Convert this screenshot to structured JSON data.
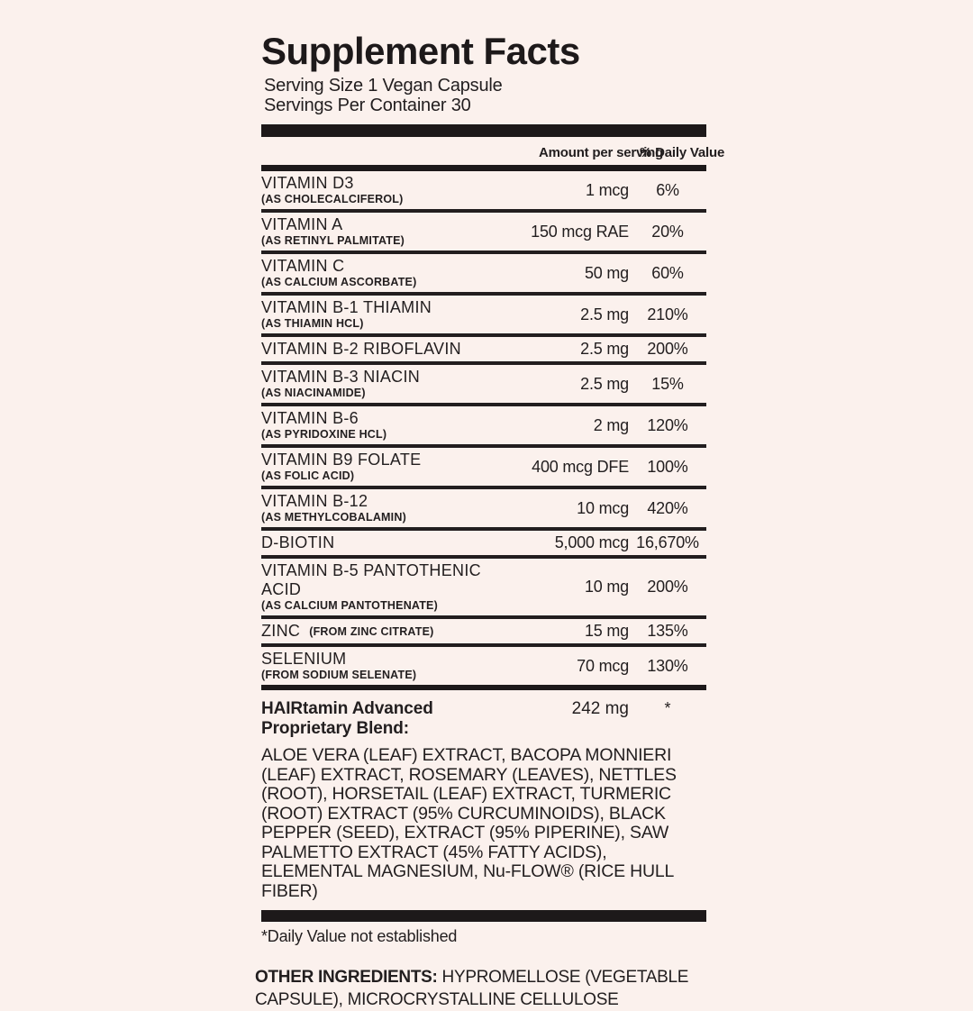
{
  "title": "Supplement Facts",
  "serving": {
    "size": "Serving Size 1 Vegan Capsule",
    "per_container": "Servings Per Container 30"
  },
  "header": {
    "amount": "Amount per serving",
    "daily_value": "% Daily Value"
  },
  "rows": [
    {
      "name": "VITAMIN D3",
      "detail": "(AS CHOLECALCIFEROL)",
      "amount": "1 mcg",
      "dv": "6%"
    },
    {
      "name": "VITAMIN A",
      "detail": "(AS RETINYL PALMITATE)",
      "amount": "150 mcg RAE",
      "dv": "20%"
    },
    {
      "name": "VITAMIN C",
      "detail": "(AS CALCIUM ASCORBATE)",
      "amount": "50 mg",
      "dv": "60%"
    },
    {
      "name": "VITAMIN B-1 THIAMIN",
      "detail": "(AS THIAMIN HCL)",
      "amount": "2.5 mg",
      "dv": "210%"
    },
    {
      "name": "VITAMIN B-2 RIBOFLAVIN",
      "detail": "",
      "amount": "2.5 mg",
      "dv": "200%"
    },
    {
      "name": "VITAMIN B-3 NIACIN",
      "detail": "(AS NIACINAMIDE)",
      "amount": "2.5 mg",
      "dv": "15%"
    },
    {
      "name": "VITAMIN B-6",
      "detail": "(AS PYRIDOXINE HCL)",
      "amount": "2 mg",
      "dv": "120%"
    },
    {
      "name": "VITAMIN B9 FOLATE",
      "detail": "(AS FOLIC ACID)",
      "amount": "400 mcg DFE",
      "dv": "100%"
    },
    {
      "name": "VITAMIN B-12",
      "detail": "(AS METHYLCOBALAMIN)",
      "amount": "10 mcg",
      "dv": "420%"
    },
    {
      "name": "D-BIOTIN",
      "detail": "",
      "amount": "5,000 mcg",
      "dv": "16,670%"
    },
    {
      "name": "VITAMIN B-5 PANTOTHENIC ACID",
      "detail": "(AS CALCIUM PANTOTHENATE)",
      "amount": "10 mg",
      "dv": "200%"
    },
    {
      "name": "ZINC",
      "detail": "(FROM ZINC CITRATE)",
      "amount": "15 mg",
      "dv": "135%"
    },
    {
      "name": "SELENIUM",
      "detail": "(FROM SODIUM SELENATE)",
      "amount": "70 mcg",
      "dv": "130%"
    }
  ],
  "blend": {
    "title": "HAIRtamin Advanced Proprietary Blend:",
    "amount": "242 mg",
    "dv": "*",
    "ingredients": "ALOE VERA (LEAF) EXTRACT, BACOPA MONNIERI (LEAF) EXTRACT, ROSEMARY (LEAVES), NETTLES (ROOT), HORSETAIL (LEAF) EXTRACT, TURMERIC (ROOT) EXTRACT (95% CURCUMINOIDS), BLACK PEPPER (SEED), EXTRACT (95% PIPERINE), SAW PALMETTO EXTRACT (45% FATTY ACIDS), ELEMENTAL MAGNESIUM, Nu-FLOW® (RICE HULL FIBER)"
  },
  "footnote": "*Daily Value not established",
  "other_ingredients": {
    "label": "OTHER INGREDIENTS:",
    "text": " HYPROMELLOSE (VEGETABLE CAPSULE), MICROCRYSTALLINE CELLULOSE"
  },
  "colors": {
    "background": "#fbf1ed",
    "ink": "#221e1f",
    "bar": "#1d191a"
  }
}
